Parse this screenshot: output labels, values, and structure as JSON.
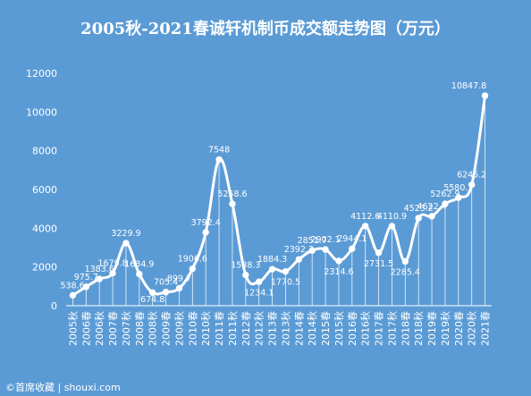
{
  "watermark": "©首席收藏 | shouxi.com",
  "chart_data": {
    "type": "line",
    "title": "2005秋-2021春诚轩机制币成交额走势图（万元）",
    "xlabel": "",
    "ylabel": "",
    "ylim": [
      0,
      12000
    ],
    "yticks": [
      0,
      2000,
      4000,
      6000,
      8000,
      10000,
      12000
    ],
    "grid": false,
    "categories": [
      "2005秋",
      "2006春",
      "2006秋",
      "2007春",
      "2007秋",
      "2008春",
      "2008秋",
      "2009春",
      "2009秋",
      "2010春",
      "2010秋",
      "2011春",
      "2011秋",
      "2012春",
      "2012秋",
      "2013春",
      "2013秋",
      "2014春",
      "2014秋",
      "2015春",
      "2015秋",
      "2016春",
      "2016秋",
      "2017春",
      "2017秋",
      "2018春",
      "2018秋",
      "2019春",
      "2019秋",
      "2020春",
      "2020秋",
      "2021春"
    ],
    "series": [
      {
        "values": [
          538.6,
          975.7,
          1383.6,
          1679.8,
          3229.9,
          1634.9,
          674.8,
          705.4,
          899.7,
          1906.6,
          3792.4,
          7548,
          5258.6,
          1588.3,
          1234.1,
          1884.3,
          1770.5,
          2392.3,
          2851.7,
          2902.1,
          2314.6,
          2944.1,
          4112.6,
          2731.5,
          4110.9,
          2285.4,
          4523.2,
          4622.4,
          5262.9,
          5580.1,
          6245.2,
          10847.8
        ],
        "labels": [
          "538.6",
          "975.7",
          "1383.6",
          "1679.8",
          "3229.9",
          "1634.9",
          "674.8",
          "705.4",
          "899.7",
          "1906.6",
          "3792.4",
          "7548",
          "5258.6",
          "1588.3",
          "1234.1",
          "1884.3",
          "1770.5",
          "2392.3",
          "2851.7",
          "2902.1",
          "2314.6",
          "2944.1",
          "4112.6",
          "2731.5",
          "4110.9",
          "2285.4",
          "4523.2",
          "4622.4",
          "5262.9",
          "5580.1",
          "6245.2",
          "10847.8"
        ]
      }
    ],
    "colors": {
      "background": "#5b9bd5",
      "line": "#ffffff",
      "text": "#ffffff",
      "axis": "#ffffff"
    }
  }
}
